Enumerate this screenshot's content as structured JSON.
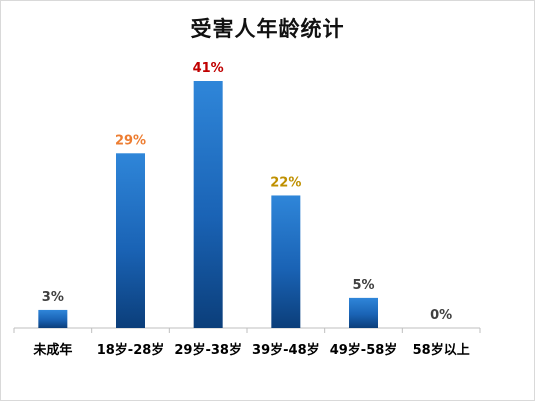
{
  "chart_data": {
    "type": "bar",
    "title": "受害人年龄统计",
    "categories": [
      "未成年",
      "18岁-28岁",
      "29岁-38岁",
      "39岁-48岁",
      "49岁-58岁",
      "58岁以上"
    ],
    "values": [
      3,
      29,
      41,
      22,
      5,
      0
    ],
    "data_labels": [
      "3%",
      "29%",
      "41%",
      "22%",
      "5%",
      "0%"
    ],
    "data_label_colors": [
      "#404040",
      "#ED7D31",
      "#C00000",
      "#BF9000",
      "#404040",
      "#404040"
    ],
    "ylim": [
      0,
      41
    ],
    "grid": false,
    "legend": "none",
    "bar_color": "#1F6FC5",
    "xlabel": "",
    "ylabel": ""
  }
}
